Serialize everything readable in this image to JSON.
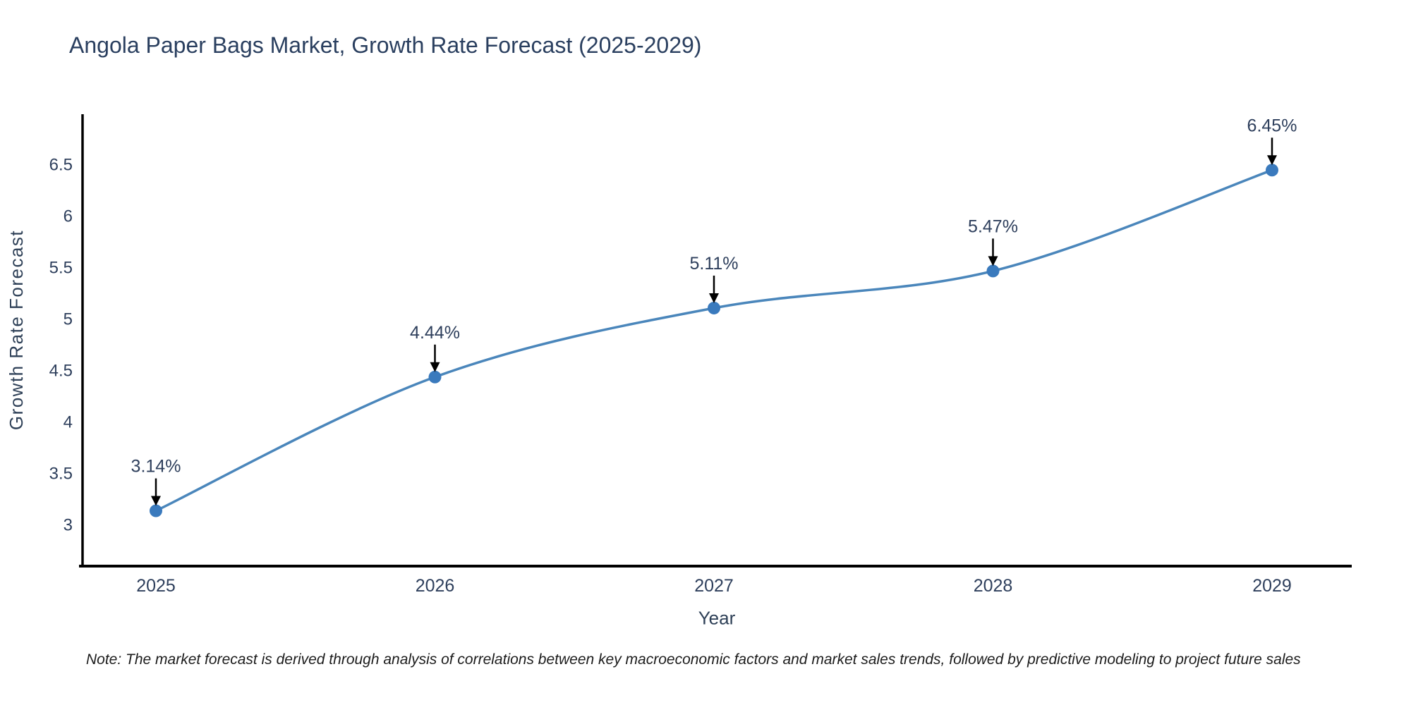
{
  "title": "Angola Paper Bags Market, Growth Rate Forecast (2025-2029)",
  "note": "Note: The market forecast is derived through analysis of correlations between key macroeconomic factors and market sales trends, followed by predictive modeling to project future sales",
  "chart_data": {
    "type": "line",
    "title": "Angola Paper Bags Market, Growth Rate Forecast (2025-2029)",
    "xlabel": "Year",
    "ylabel": "Growth Rate Forecast",
    "x": [
      2025,
      2026,
      2027,
      2028,
      2029
    ],
    "y": [
      3.14,
      4.44,
      5.11,
      5.47,
      6.45
    ],
    "point_labels": [
      "3.14%",
      "4.44%",
      "5.11%",
      "5.47%",
      "6.45%"
    ],
    "xtick_labels": [
      "2025",
      "2026",
      "2027",
      "2028",
      "2029"
    ],
    "ytick_values": [
      3,
      3.5,
      4,
      4.5,
      5,
      5.5,
      6,
      6.5
    ],
    "ytick_labels": [
      "3",
      "3.5",
      "4",
      "4.5",
      "5",
      "5.5",
      "6",
      "6.5"
    ],
    "ylim": [
      2.6,
      7.0
    ],
    "grid": false,
    "legend": "none",
    "line_shape": "spline",
    "annotations_have_arrows": true
  },
  "colors": {
    "background": "#ffffff",
    "line": "#4a86bb",
    "marker": "#3a7abd",
    "axis_line": "#000000",
    "arrow": "#000000",
    "chart_text": "#2e3f5c",
    "heading_text": "#2a3f5f",
    "note_text": "#1c1c1c"
  }
}
